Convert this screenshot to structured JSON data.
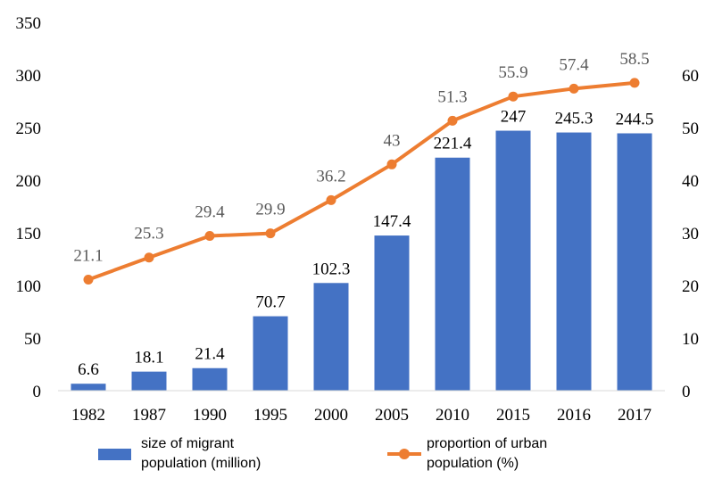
{
  "chart_data": {
    "type": "bar",
    "categories": [
      "1982",
      "1987",
      "1990",
      "1995",
      "2000",
      "2005",
      "2010",
      "2015",
      "2016",
      "2017"
    ],
    "series": [
      {
        "name": "size of migrant population (million)",
        "type": "bar",
        "axis": "left",
        "color": "#4472C4",
        "values": [
          6.6,
          18.1,
          21.4,
          70.7,
          102.3,
          147.4,
          221.4,
          247,
          245.3,
          244.5
        ]
      },
      {
        "name": "proportion of urban population (%)",
        "type": "line",
        "axis": "right",
        "color": "#ED7D31",
        "values": [
          21.1,
          25.3,
          29.4,
          29.9,
          36.2,
          43,
          51.3,
          55.9,
          57.4,
          58.5
        ]
      }
    ],
    "ylim": [
      0,
      350
    ],
    "yticks": [
      0,
      50,
      100,
      150,
      200,
      250,
      300,
      350
    ],
    "y2lim": [
      0,
      70
    ],
    "y2ticks": [
      0,
      10,
      20,
      30,
      40,
      50,
      60
    ],
    "grid": false,
    "legend_position": "bottom",
    "legend": [
      {
        "line1": "size of migrant",
        "line2": "population (million)"
      },
      {
        "line1": "proportion of urban",
        "line2": "population (%)"
      }
    ]
  }
}
